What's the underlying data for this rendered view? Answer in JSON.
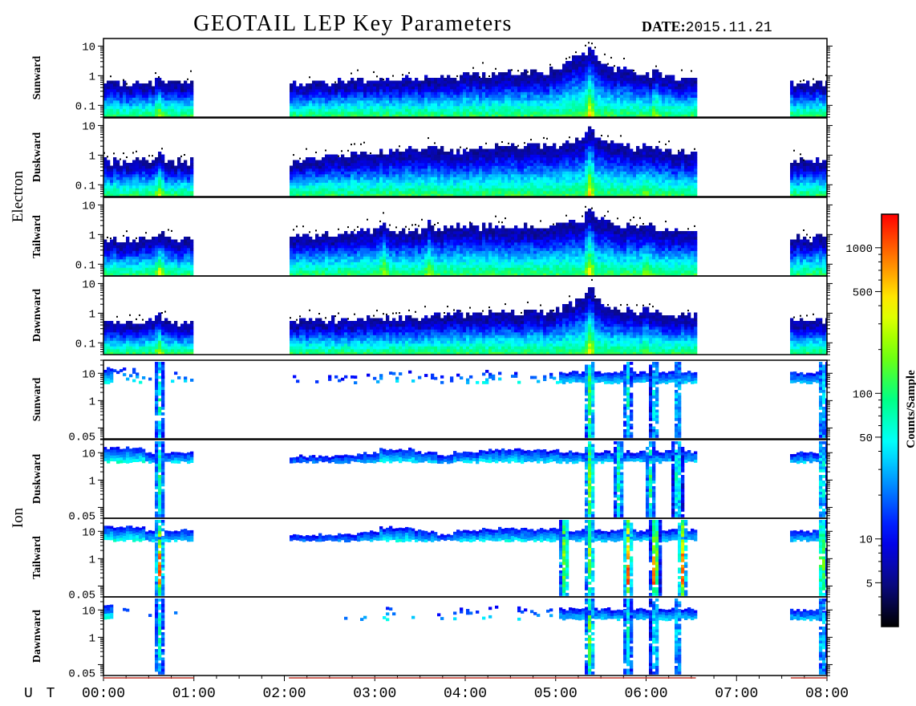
{
  "header": {
    "title": "GEOTAIL LEP Key Parameters",
    "date_label": "DATE:",
    "date_value": "2015.11.21"
  },
  "groups": [
    {
      "name": "Electron",
      "panel_indices": [
        0,
        1,
        2,
        3
      ]
    },
    {
      "name": "Ion",
      "panel_indices": [
        4,
        5,
        6,
        7
      ]
    }
  ],
  "x_axis": {
    "prefix": "U T",
    "tick_labels": [
      "00:00",
      "01:00",
      "02:00",
      "03:00",
      "04:00",
      "05:00",
      "06:00",
      "07:00",
      "08:00"
    ]
  },
  "colorbar": {
    "label": "Counts/Sample",
    "tick_labels": [
      "5",
      "10",
      "50",
      "100",
      "500",
      "1000"
    ],
    "tick_values": [
      5,
      10,
      50,
      100,
      500,
      1000
    ],
    "range": [
      2.5,
      1700
    ],
    "scale": "log",
    "colormap": [
      "#000000",
      "#0a0a8c",
      "#0000ff",
      "#0080ff",
      "#00ffff",
      "#00ff80",
      "#80ff00",
      "#ffff00",
      "#ff8000",
      "#ff0000"
    ]
  },
  "chart_data": {
    "type": "heatmap",
    "title": "GEOTAIL LEP Key Parameters",
    "date": "2015.11.21",
    "x_range_hours": [
      0,
      8
    ],
    "x_tick_labels": [
      "00:00",
      "01:00",
      "02:00",
      "03:00",
      "04:00",
      "05:00",
      "06:00",
      "07:00",
      "08:00"
    ],
    "data_coverage_hours": [
      [
        0.0,
        1.0
      ],
      [
        2.05,
        6.55
      ],
      [
        7.6,
        8.0
      ]
    ],
    "panels": [
      {
        "species": "Electron",
        "direction": "Sunward",
        "y_scale": "log",
        "y_range": [
          0.04,
          18
        ],
        "y_tick_labels": [
          "10",
          "1",
          "0.1"
        ],
        "y_tick_values": [
          10,
          1,
          0.1
        ],
        "profile": [
          [
            0,
            0.5
          ],
          [
            1,
            0.5
          ],
          [
            2.05,
            0.5
          ],
          [
            3.0,
            0.6
          ],
          [
            4.0,
            0.9
          ],
          [
            4.6,
            1.0
          ],
          [
            5.0,
            1.3
          ],
          [
            5.4,
            5.0
          ],
          [
            5.6,
            1.5
          ],
          [
            6.0,
            1.0
          ],
          [
            6.55,
            0.6
          ],
          [
            7.6,
            0.5
          ],
          [
            8.0,
            0.5
          ]
        ],
        "events": [
          [
            0.62,
            0.35
          ],
          [
            5.38,
            0.5
          ],
          [
            6.1,
            0.25
          ]
        ]
      },
      {
        "species": "Electron",
        "direction": "Duskward",
        "y_scale": "log",
        "y_range": [
          0.04,
          18
        ],
        "y_tick_labels": [
          "10",
          "1",
          "0.1"
        ],
        "y_tick_values": [
          10,
          1,
          0.1
        ],
        "profile": [
          [
            0,
            0.55
          ],
          [
            1,
            0.55
          ],
          [
            2.05,
            0.5
          ],
          [
            3.0,
            1.0
          ],
          [
            3.5,
            1.5
          ],
          [
            4.0,
            1.3
          ],
          [
            4.5,
            1.8
          ],
          [
            5.0,
            1.6
          ],
          [
            5.4,
            4.0
          ],
          [
            5.7,
            1.8
          ],
          [
            6.0,
            1.4
          ],
          [
            6.55,
            1.0
          ],
          [
            7.6,
            0.6
          ],
          [
            8.0,
            0.6
          ]
        ],
        "events": [
          [
            0.62,
            0.4
          ],
          [
            5.38,
            0.55
          ],
          [
            6.0,
            0.2
          ]
        ]
      },
      {
        "species": "Electron",
        "direction": "Tailward",
        "y_scale": "log",
        "y_range": [
          0.04,
          18
        ],
        "y_tick_labels": [
          "10",
          "1",
          "0.1"
        ],
        "y_tick_values": [
          10,
          1,
          0.1
        ],
        "profile": [
          [
            0,
            0.6
          ],
          [
            1,
            0.6
          ],
          [
            2.05,
            0.6
          ],
          [
            3.0,
            1.2
          ],
          [
            3.5,
            1.3
          ],
          [
            4.0,
            1.6
          ],
          [
            4.5,
            1.8
          ],
          [
            5.0,
            1.5
          ],
          [
            5.4,
            3.5
          ],
          [
            5.7,
            1.8
          ],
          [
            6.0,
            1.5
          ],
          [
            6.55,
            1.0
          ],
          [
            7.6,
            0.7
          ],
          [
            8.0,
            0.7
          ]
        ],
        "events": [
          [
            0.62,
            0.5
          ],
          [
            3.1,
            0.35
          ],
          [
            3.6,
            0.3
          ],
          [
            5.38,
            0.55
          ],
          [
            6.0,
            0.25
          ]
        ]
      },
      {
        "species": "Electron",
        "direction": "Dawnward",
        "y_scale": "log",
        "y_range": [
          0.04,
          18
        ],
        "y_tick_labels": [
          "10",
          "1",
          "0.1"
        ],
        "y_tick_values": [
          10,
          1,
          0.1
        ],
        "profile": [
          [
            0,
            0.45
          ],
          [
            1,
            0.45
          ],
          [
            2.05,
            0.45
          ],
          [
            3.0,
            0.6
          ],
          [
            4.0,
            0.8
          ],
          [
            4.6,
            0.9
          ],
          [
            5.0,
            1.0
          ],
          [
            5.4,
            3.2
          ],
          [
            5.6,
            1.2
          ],
          [
            6.0,
            1.0
          ],
          [
            6.55,
            0.7
          ],
          [
            7.6,
            0.5
          ],
          [
            8.0,
            0.5
          ]
        ],
        "events": [
          [
            0.62,
            0.4
          ],
          [
            5.38,
            0.5
          ],
          [
            6.0,
            0.2
          ]
        ]
      },
      {
        "species": "Ion",
        "direction": "Sunward",
        "y_scale": "log",
        "y_range": [
          0.04,
          30
        ],
        "y_tick_labels": [
          "10",
          "1",
          "0.05"
        ],
        "y_tick_values": [
          10,
          1,
          0.05
        ],
        "profile": [],
        "events": [
          [
            0.62,
            0.45
          ],
          [
            5.38,
            0.7
          ],
          [
            5.8,
            0.45
          ],
          [
            6.1,
            0.45
          ],
          [
            6.35,
            0.4
          ],
          [
            7.95,
            0.4
          ]
        ]
      },
      {
        "species": "Ion",
        "direction": "Duskward",
        "y_scale": "log",
        "y_range": [
          0.04,
          30
        ],
        "y_tick_labels": [
          "10",
          "1",
          "0.05"
        ],
        "y_tick_values": [
          10,
          1,
          0.05
        ],
        "profile": [],
        "events": [
          [
            0.62,
            0.5
          ],
          [
            5.38,
            0.75
          ],
          [
            5.7,
            0.55
          ],
          [
            6.05,
            0.55
          ],
          [
            6.35,
            0.55
          ],
          [
            7.95,
            0.5
          ]
        ]
      },
      {
        "species": "Ion",
        "direction": "Tailward",
        "y_scale": "log",
        "y_range": [
          0.04,
          30
        ],
        "y_tick_labels": [
          "10",
          "1",
          "0.05"
        ],
        "y_tick_values": [
          10,
          1,
          0.05
        ],
        "profile": [],
        "events": [
          [
            0.62,
            0.8
          ],
          [
            5.1,
            0.8
          ],
          [
            5.38,
            0.75
          ],
          [
            5.8,
            0.95
          ],
          [
            6.1,
            0.95
          ],
          [
            6.4,
            0.95
          ],
          [
            7.95,
            0.8
          ]
        ]
      },
      {
        "species": "Ion",
        "direction": "Dawnward",
        "y_scale": "log",
        "y_range": [
          0.04,
          30
        ],
        "y_tick_labels": [
          "10",
          "1",
          "0.05"
        ],
        "y_tick_values": [
          10,
          1,
          0.05
        ],
        "profile": [],
        "events": [
          [
            0.62,
            0.45
          ],
          [
            5.38,
            0.7
          ],
          [
            5.8,
            0.45
          ],
          [
            6.1,
            0.45
          ],
          [
            6.35,
            0.4
          ],
          [
            7.95,
            0.4
          ]
        ]
      }
    ],
    "ion_segments": [
      [
        0.0,
        0.45,
        0.75
      ],
      [
        0.45,
        0.6,
        0.5
      ],
      [
        0.6,
        0.68,
        0.3
      ],
      [
        0.68,
        1.0,
        0.55
      ],
      [
        2.05,
        2.8,
        0.3
      ],
      [
        2.8,
        3.05,
        0.45
      ],
      [
        3.05,
        3.45,
        0.7
      ],
      [
        3.45,
        3.7,
        0.5
      ],
      [
        3.7,
        3.85,
        0.3
      ],
      [
        3.85,
        4.15,
        0.55
      ],
      [
        4.15,
        4.6,
        0.65
      ],
      [
        4.6,
        5.05,
        0.6
      ],
      [
        5.05,
        6.55,
        0.55
      ],
      [
        7.6,
        8.0,
        0.5
      ]
    ]
  }
}
